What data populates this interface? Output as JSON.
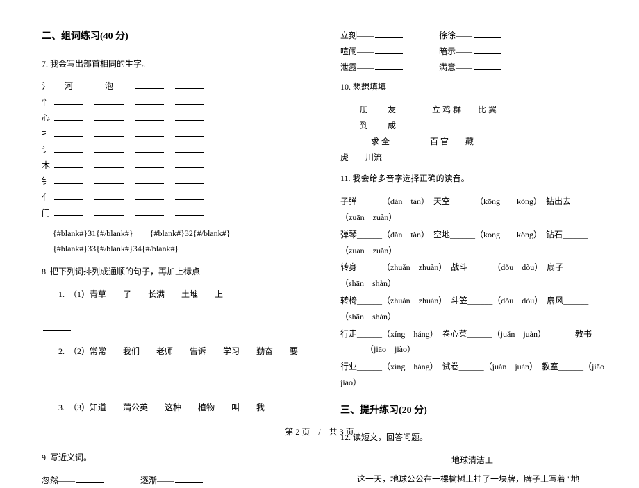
{
  "left": {
    "sectionTitle": "二、组词练习(40 分)",
    "q7": {
      "num": "7.",
      "text": "我会写出部首相同的生字。",
      "radicals": [
        "氵",
        "忄",
        "心",
        "扌",
        "讠",
        "木",
        "钅",
        "亻",
        "门"
      ],
      "prefilledRow0": [
        "河",
        "泡"
      ],
      "blankTokens": "{#blank#}31{#/blank#}　　{#blank#}32{#/blank#}　　{#blank#}33{#/blank#}34{#/blank#}"
    },
    "q8": {
      "num": "8.",
      "text": "把下列词排列成通顺的句子，再加上标点",
      "items": [
        "1.　（1）青草　　了　　长满　　土堆　　上",
        "2.　（2）常常　　我们　　老师　　告诉　　学习　　勤奋　　要",
        "3.　（3）知道　　蒲公英　　这种　　植物　　叫　　我"
      ]
    },
    "q9": {
      "num": "9.",
      "text": "写近义词。",
      "pairs": [
        {
          "l": "忽然——",
          "r": "逐渐——"
        }
      ]
    }
  },
  "right": {
    "synPairs": [
      {
        "l": "立刻——",
        "r": "徐徐——"
      },
      {
        "l": "喧闹——",
        "r": "暗示——"
      },
      {
        "l": "泄露——",
        "r": "满意——"
      }
    ],
    "q10": {
      "num": "10.",
      "text": "想想填填",
      "lines": [
        [
          {
            "t": "blank",
            "w": "w24"
          },
          {
            "t": "text",
            "v": "朋"
          },
          {
            "t": "blank",
            "w": "w24"
          },
          {
            "t": "text",
            "v": "友　　"
          },
          {
            "t": "blank",
            "w": "w24"
          },
          {
            "t": "text",
            "v": "立 鸡 群　　比 翼"
          },
          {
            "t": "blank",
            "w": "w30"
          }
        ],
        [
          {
            "t": "blank",
            "w": "w24"
          },
          {
            "t": "text",
            "v": "到"
          },
          {
            "t": "blank",
            "w": "w24"
          },
          {
            "t": "text",
            "v": "成"
          }
        ],
        [
          {
            "t": "blank",
            "w": "w40"
          },
          {
            "t": "text",
            "v": "求 全　　"
          },
          {
            "t": "blank",
            "w": "w30"
          },
          {
            "t": "text",
            "v": "百 官　　藏"
          },
          {
            "t": "blank",
            "w": "w40"
          }
        ],
        [
          {
            "t": "text",
            "v": "虎　　川流"
          },
          {
            "t": "blank",
            "w": "w40"
          }
        ]
      ]
    },
    "q11": {
      "num": "11.",
      "text": "我会给多音字选择正确的读音。",
      "rows": [
        "子弹______（dàn　tàn）　天空______（kōng　　kòng）　钻出去______（zuān　zuàn）",
        "弹琴______（dàn　tàn）　空地______（kōng　　kòng）　钻石______（zuān　zuàn）",
        "转身______（zhuǎn　zhuàn）　战斗______（dǒu　dòu）　扇子______（shān　shàn）",
        "转椅______（zhuǎn　zhuàn）　斗笠______（dǒu　dòu）　扇风______（shān　shàn）",
        "行走______（xíng　háng）　卷心菜______（juǎn　juàn）　　　　教书______（jiāo　jiào）",
        "行业______（xíng　háng）　试卷______（juǎn　juàn）　教室______（jiāo　jiào）"
      ]
    },
    "sectionTitle": "三、提升练习(20 分)",
    "q12": {
      "num": "12.",
      "text": "读短文，回答问题。",
      "storyTitle": "地球清洁工",
      "body": "这一天，地球公公在一棵榆树上挂了一块牌，牌子上写着 \"地"
    }
  },
  "footer": "第 2 页　/　共 3 页"
}
